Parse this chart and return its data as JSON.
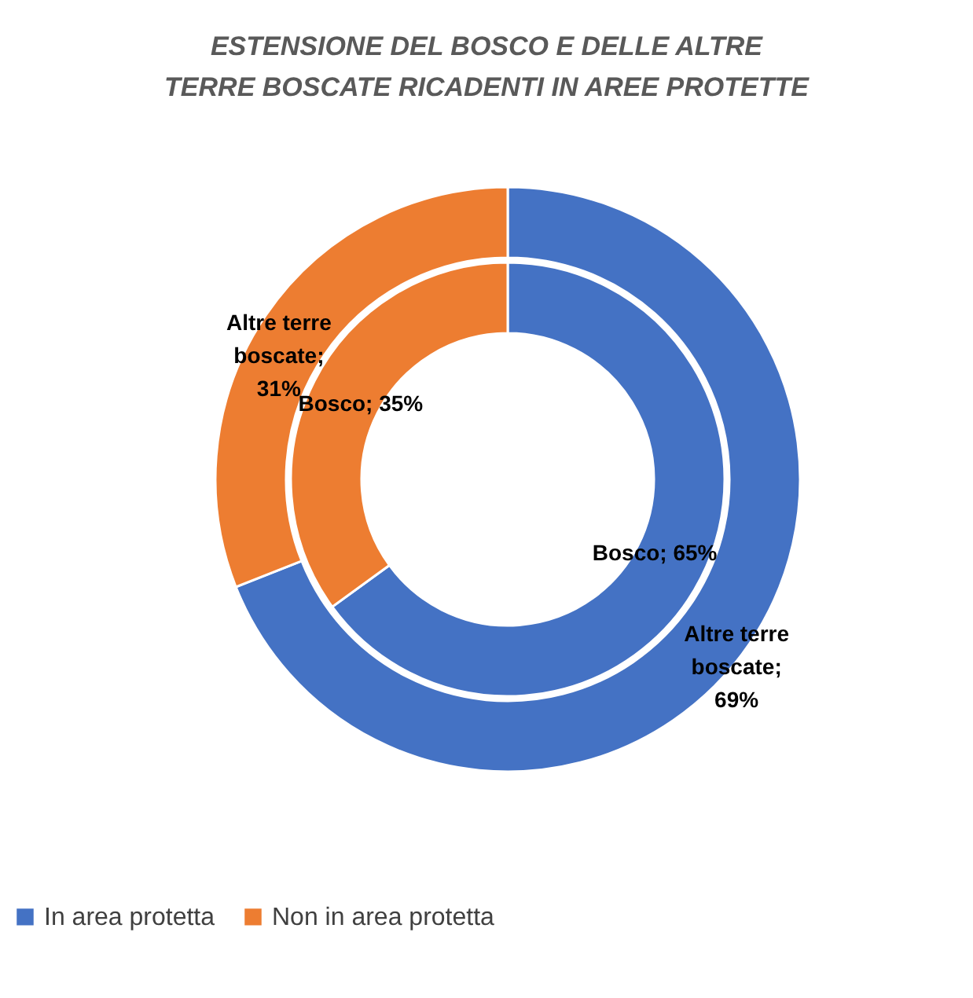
{
  "chart_data": {
    "type": "donut",
    "title": "ESTENSIONE DEL BOSCO E DELLE ALTRE TERRE BOSCATE RICADENTI IN AREE PROTETTE",
    "categories": [
      "In area protetta",
      "Non in area protetta"
    ],
    "colors": [
      "#4472c4",
      "#ed7d31"
    ],
    "series": [
      {
        "values": [
          65,
          35
        ],
        "value_labels": [
          "Bosco; 65%",
          "Bosco; 35%"
        ]
      },
      {
        "values": [
          69,
          31
        ],
        "value_labels": [
          "Altre terre boscate; 69%",
          "Altre terre boscate; 31%"
        ]
      }
    ],
    "legend": "bottom"
  }
}
